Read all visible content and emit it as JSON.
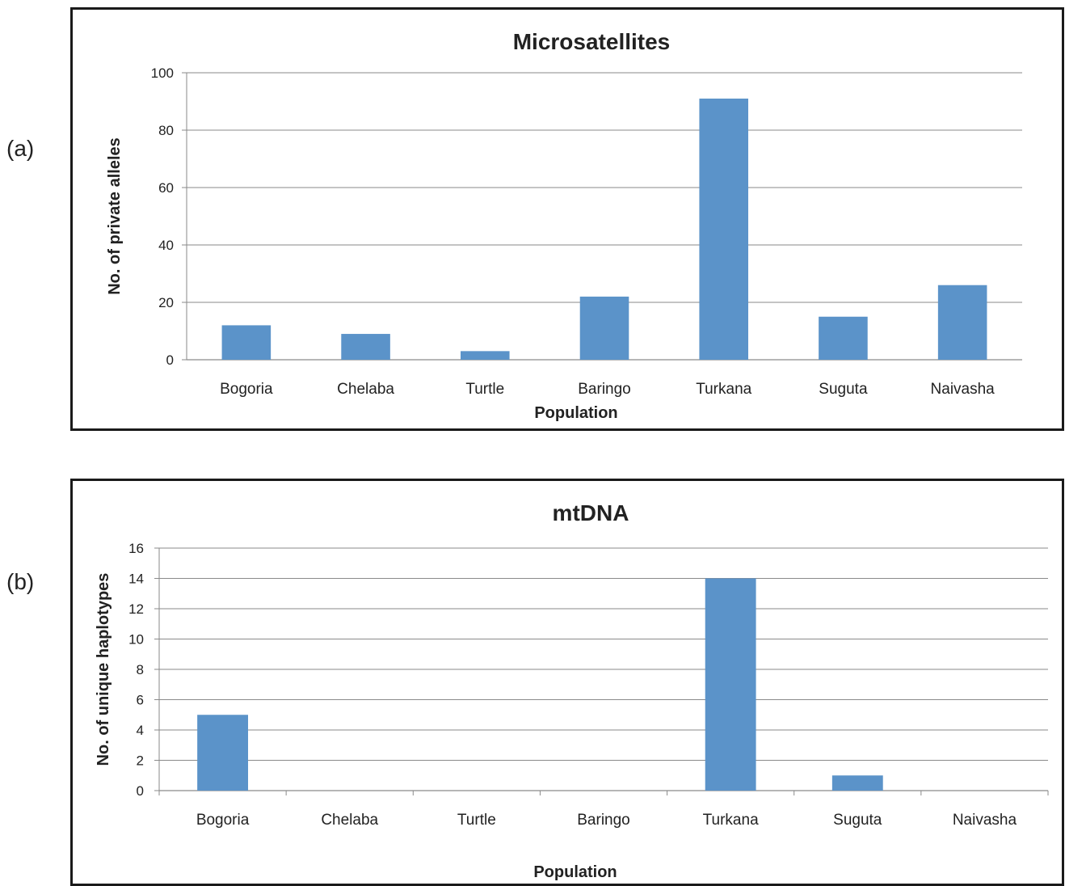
{
  "panels": [
    {
      "label": "(a)"
    },
    {
      "label": "(b)"
    }
  ],
  "chart_data": [
    {
      "type": "bar",
      "title": "Microsatellites",
      "xlabel": "Population",
      "ylabel": "No. of private alleles",
      "categories": [
        "Bogoria",
        "Chelaba",
        "Turtle",
        "Baringo",
        "Turkana",
        "Suguta",
        "Naivasha"
      ],
      "values": [
        12,
        9,
        3,
        22,
        91,
        15,
        26
      ],
      "ylim": [
        0,
        100
      ],
      "yticks": [
        0,
        20,
        40,
        60,
        80,
        100
      ],
      "grid": true,
      "bar_color": "#5b93c9"
    },
    {
      "type": "bar",
      "title": "mtDNA",
      "xlabel": "Population",
      "ylabel": "No. of unique haplotypes",
      "categories": [
        "Bogoria",
        "Chelaba",
        "Turtle",
        "Baringo",
        "Turkana",
        "Suguta",
        "Naivasha"
      ],
      "values": [
        5,
        0,
        0,
        0,
        14,
        1,
        0
      ],
      "ylim": [
        0,
        16
      ],
      "yticks": [
        0,
        2,
        4,
        6,
        8,
        10,
        12,
        14,
        16
      ],
      "grid": true,
      "bar_color": "#5b93c9"
    }
  ]
}
